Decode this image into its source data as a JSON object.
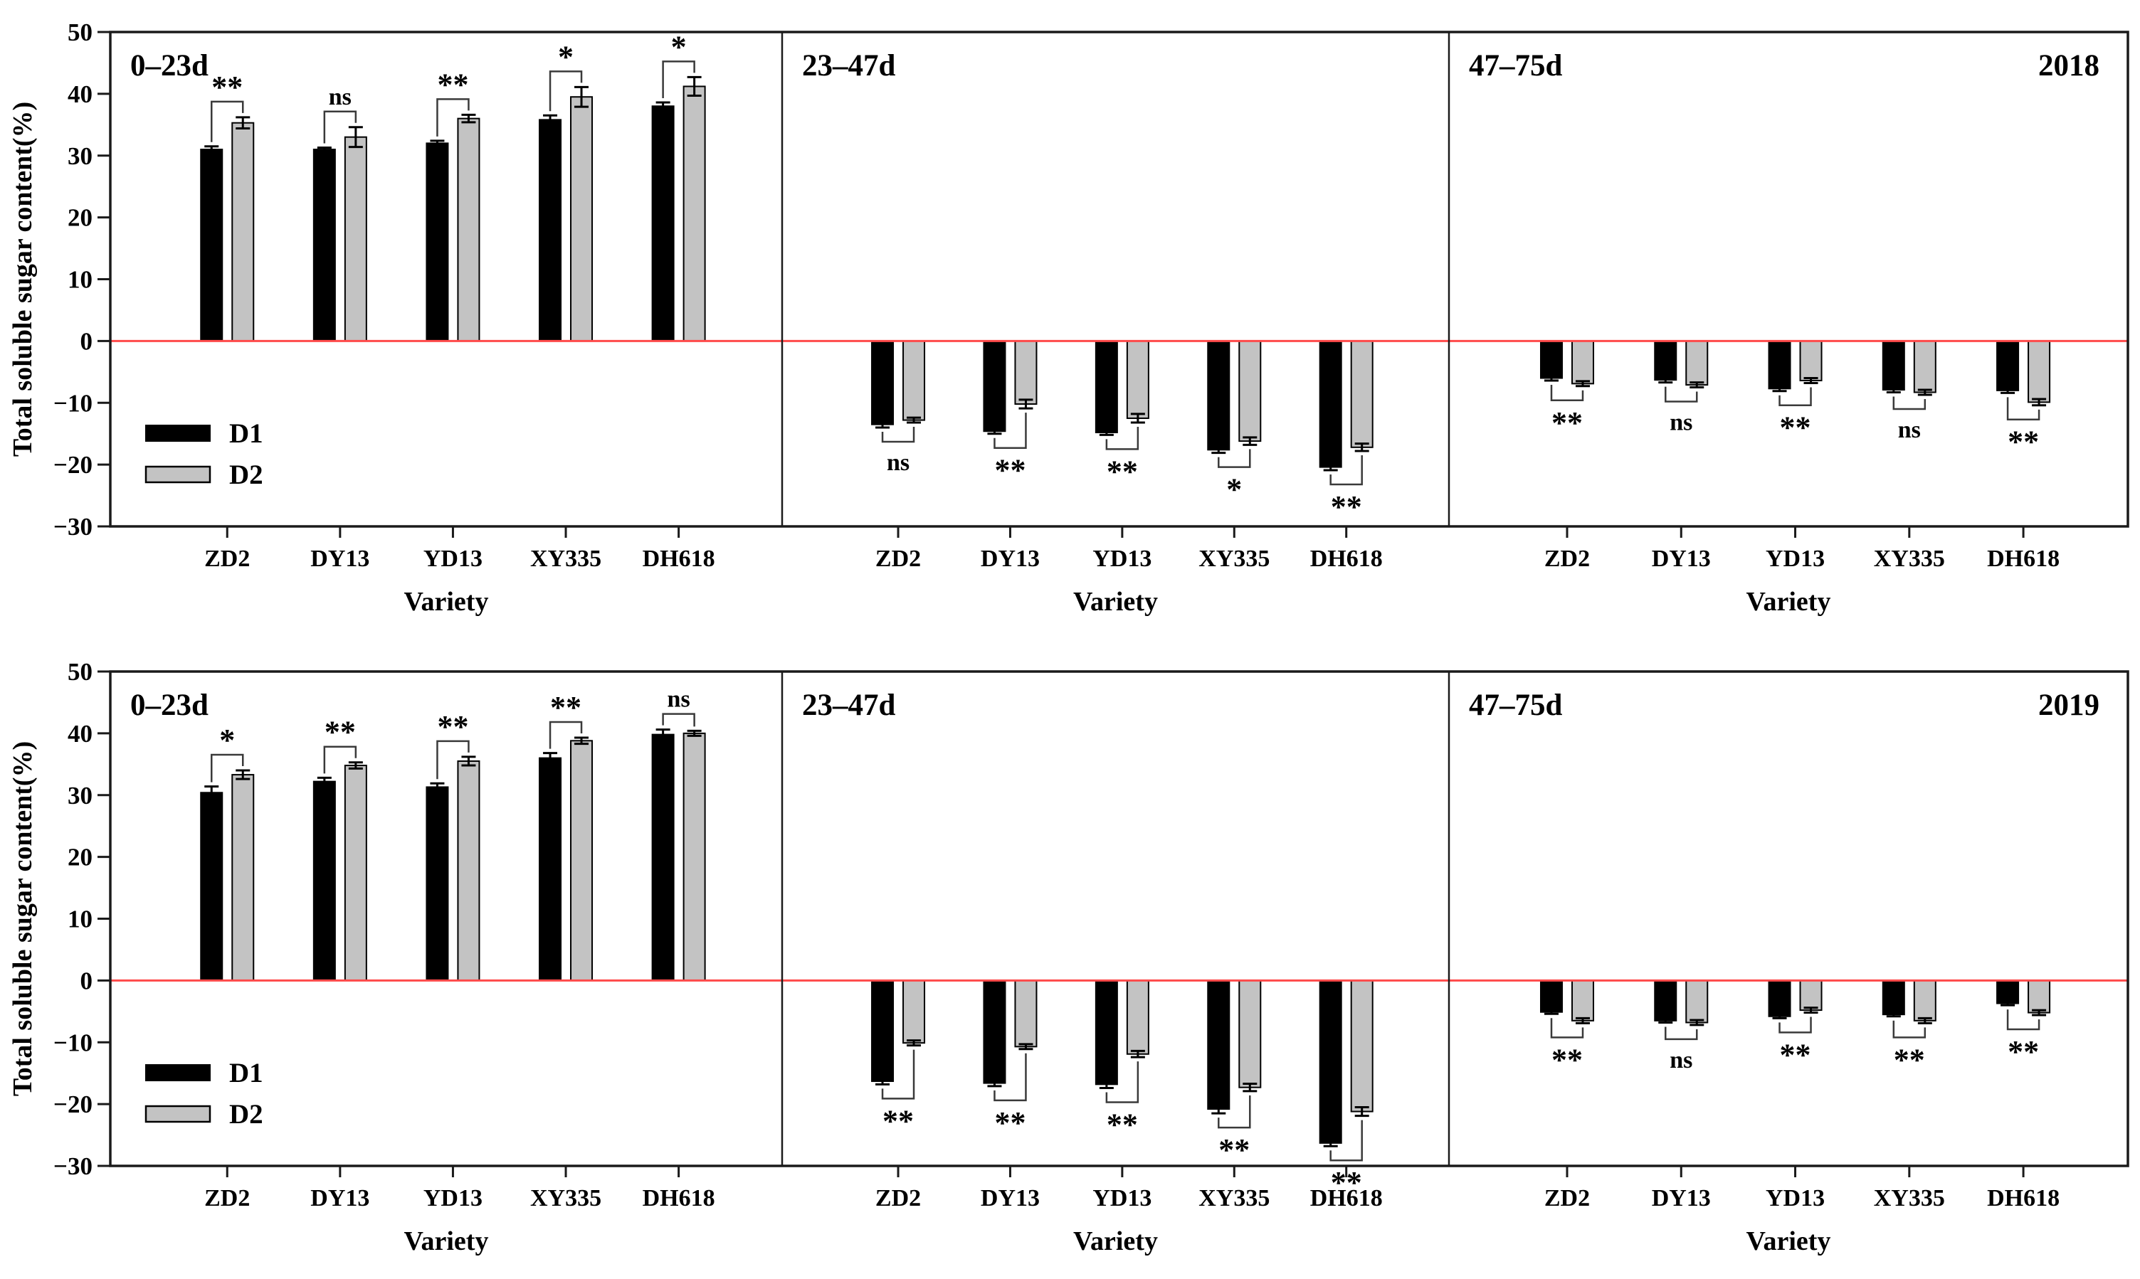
{
  "chart_data": {
    "type": "bar",
    "ylabel": "Total soluble sugar content(%)",
    "xlabel": "Variety",
    "ylim": [
      -30,
      50
    ],
    "ytick_step": 10,
    "yticks": [
      50,
      40,
      30,
      20,
      10,
      0,
      -10,
      -20,
      -30
    ],
    "grid": false,
    "legend_position": "lower-left-of-first-panel",
    "categories": [
      "ZD2",
      "DY13",
      "YD13",
      "XY335",
      "DH618"
    ],
    "legend": [
      "D1",
      "D2"
    ],
    "colors": {
      "d1_fill": "#000000",
      "d2_fill": "#c3c3c3",
      "bar_stroke": "#000000",
      "zero_line": "#ff4a4a",
      "frame": "#1a1a1a",
      "bracket": "#3a3a3a"
    },
    "rows": [
      {
        "year": "2018",
        "panels": [
          {
            "period": "0–23d",
            "show_legend": true,
            "series": [
              {
                "name": "D1",
                "values": [
                  31.0,
                  31.0,
                  32.0,
                  35.8,
                  38.0
                ],
                "errors": [
                  0.5,
                  0.3,
                  0.4,
                  0.7,
                  0.6
                ]
              },
              {
                "name": "D2",
                "values": [
                  35.3,
                  33.0,
                  36.0,
                  39.5,
                  41.2
                ],
                "errors": [
                  0.9,
                  1.6,
                  0.6,
                  1.6,
                  1.5
                ]
              }
            ],
            "significance": [
              "**",
              "ns",
              "**",
              "*",
              "*"
            ]
          },
          {
            "period": "23–47d",
            "show_legend": false,
            "series": [
              {
                "name": "D1",
                "values": [
                  -13.5,
                  -14.6,
                  -14.8,
                  -17.6,
                  -20.4
                ],
                "errors": [
                  0.5,
                  0.4,
                  0.4,
                  0.5,
                  0.5
                ]
              },
              {
                "name": "D2",
                "values": [
                  -12.8,
                  -10.2,
                  -12.5,
                  -16.2,
                  -17.2
                ],
                "errors": [
                  0.4,
                  0.7,
                  0.7,
                  0.6,
                  0.6
                ]
              }
            ],
            "significance": [
              "ns",
              "**",
              "**",
              "*",
              "**"
            ]
          },
          {
            "period": "47–75d",
            "show_legend": false,
            "year_label": "2018",
            "series": [
              {
                "name": "D1",
                "values": [
                  -6.0,
                  -6.3,
                  -7.7,
                  -7.9,
                  -8.0
                ],
                "errors": [
                  0.4,
                  0.4,
                  0.4,
                  0.4,
                  0.4
                ]
              },
              {
                "name": "D2",
                "values": [
                  -6.9,
                  -7.1,
                  -6.4,
                  -8.3,
                  -9.9
                ],
                "errors": [
                  0.4,
                  0.4,
                  0.4,
                  0.4,
                  0.5
                ]
              }
            ],
            "significance": [
              "**",
              "ns",
              "**",
              "ns",
              "**"
            ]
          }
        ]
      },
      {
        "year": "2019",
        "panels": [
          {
            "period": "0–23d",
            "show_legend": true,
            "series": [
              {
                "name": "D1",
                "values": [
                  30.4,
                  32.2,
                  31.3,
                  36.0,
                  39.8
                ],
                "errors": [
                  1.0,
                  0.6,
                  0.6,
                  0.8,
                  0.8
                ]
              },
              {
                "name": "D2",
                "values": [
                  33.3,
                  34.8,
                  35.5,
                  38.8,
                  40.0
                ],
                "errors": [
                  0.7,
                  0.5,
                  0.7,
                  0.5,
                  0.4
                ]
              }
            ],
            "significance": [
              "*",
              "**",
              "**",
              "**",
              "ns"
            ]
          },
          {
            "period": "23–47d",
            "show_legend": false,
            "series": [
              {
                "name": "D1",
                "values": [
                  -16.3,
                  -16.6,
                  -16.8,
                  -20.8,
                  -26.3
                ],
                "errors": [
                  0.5,
                  0.5,
                  0.6,
                  0.7,
                  0.5
                ]
              },
              {
                "name": "D2",
                "values": [
                  -10.1,
                  -10.7,
                  -11.9,
                  -17.3,
                  -21.2
                ],
                "errors": [
                  0.4,
                  0.4,
                  0.5,
                  0.6,
                  0.7
                ]
              }
            ],
            "significance": [
              "**",
              "**",
              "**",
              "**",
              "**"
            ]
          },
          {
            "period": "47–75d",
            "show_legend": false,
            "year_label": "2019",
            "series": [
              {
                "name": "D1",
                "values": [
                  -5.1,
                  -6.5,
                  -5.8,
                  -5.5,
                  -3.7
                ],
                "errors": [
                  0.3,
                  0.3,
                  0.3,
                  0.3,
                  0.3
                ]
              },
              {
                "name": "D2",
                "values": [
                  -6.5,
                  -6.8,
                  -4.8,
                  -6.5,
                  -5.2
                ],
                "errors": [
                  0.4,
                  0.4,
                  0.4,
                  0.4,
                  0.4
                ]
              }
            ],
            "significance": [
              "**",
              "ns",
              "**",
              "**",
              "**"
            ]
          }
        ]
      }
    ]
  }
}
